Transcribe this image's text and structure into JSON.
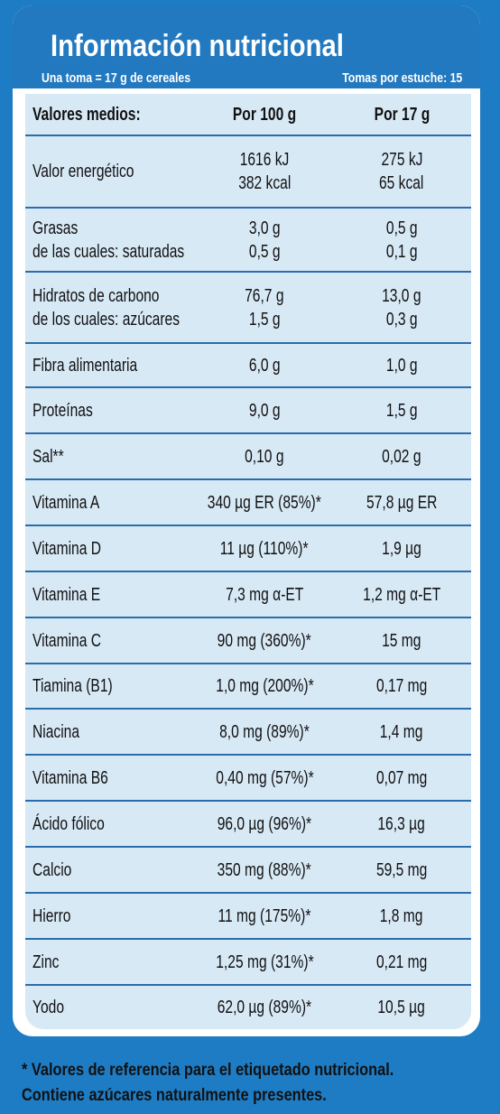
{
  "header": {
    "title": "Información nutricional",
    "serving": "Una toma = 17 g de cereales",
    "servings_per_pack": "Tomas por estuche: 15"
  },
  "table": {
    "columns": [
      "Valores medios:",
      "Por 100 g",
      "Por 17 g"
    ],
    "rows": [
      {
        "label": [
          "Valor energético"
        ],
        "per100": [
          "1616 kJ",
          "382 kcal"
        ],
        "per17": [
          "275 kJ",
          "65 kcal"
        ]
      },
      {
        "label": [
          "Grasas",
          "de las cuales: saturadas"
        ],
        "per100": [
          "3,0 g",
          "0,5 g"
        ],
        "per17": [
          "0,5 g",
          "0,1 g"
        ]
      },
      {
        "label": [
          "Hidratos de carbono",
          "de los cuales: azúcares"
        ],
        "per100": [
          "76,7 g",
          "1,5 g"
        ],
        "per17": [
          "13,0 g",
          "0,3 g"
        ]
      },
      {
        "label": [
          "Fibra alimentaria"
        ],
        "per100": [
          "6,0 g"
        ],
        "per17": [
          "1,0 g"
        ]
      },
      {
        "label": [
          "Proteínas"
        ],
        "per100": [
          "9,0 g"
        ],
        "per17": [
          "1,5 g"
        ]
      },
      {
        "label": [
          "Sal**"
        ],
        "per100": [
          "0,10 g"
        ],
        "per17": [
          "0,02 g"
        ]
      },
      {
        "label": [
          "Vitamina A"
        ],
        "per100": [
          "340 µg ER (85%)*"
        ],
        "per17": [
          "57,8 µg ER"
        ]
      },
      {
        "label": [
          "Vitamina D"
        ],
        "per100": [
          "11 µg (110%)*"
        ],
        "per17": [
          "1,9 µg"
        ]
      },
      {
        "label": [
          "Vitamina E"
        ],
        "per100": [
          "7,3 mg α-ET"
        ],
        "per17": [
          "1,2 mg α-ET"
        ]
      },
      {
        "label": [
          "Vitamina C"
        ],
        "per100": [
          "90 mg (360%)*"
        ],
        "per17": [
          "15 mg"
        ]
      },
      {
        "label": [
          "Tiamina (B1)"
        ],
        "per100": [
          "1,0 mg (200%)*"
        ],
        "per17": [
          "0,17 mg"
        ]
      },
      {
        "label": [
          "Niacina"
        ],
        "per100": [
          "8,0 mg (89%)*"
        ],
        "per17": [
          "1,4 mg"
        ]
      },
      {
        "label": [
          "Vitamina B6"
        ],
        "per100": [
          "0,40 mg (57%)*"
        ],
        "per17": [
          "0,07 mg"
        ]
      },
      {
        "label": [
          "Ácido fólico"
        ],
        "per100": [
          "96,0 µg (96%)*"
        ],
        "per17": [
          "16,3 µg"
        ]
      },
      {
        "label": [
          "Calcio"
        ],
        "per100": [
          "350 mg (88%)*"
        ],
        "per17": [
          "59,5 mg"
        ]
      },
      {
        "label": [
          "Hierro"
        ],
        "per100": [
          "11 mg (175%)*"
        ],
        "per17": [
          "1,8 mg"
        ]
      },
      {
        "label": [
          "Zinc"
        ],
        "per100": [
          "1,25 mg (31%)*"
        ],
        "per17": [
          "0,21 mg"
        ]
      },
      {
        "label": [
          "Yodo"
        ],
        "per100": [
          "62,0 µg (89%)*"
        ],
        "per17": [
          "10,5 µg"
        ]
      }
    ]
  },
  "footer": {
    "note1": "* Valores de referencia para el etiquetado nutricional.",
    "note2": "Contiene azúcares naturalmente presentes."
  }
}
